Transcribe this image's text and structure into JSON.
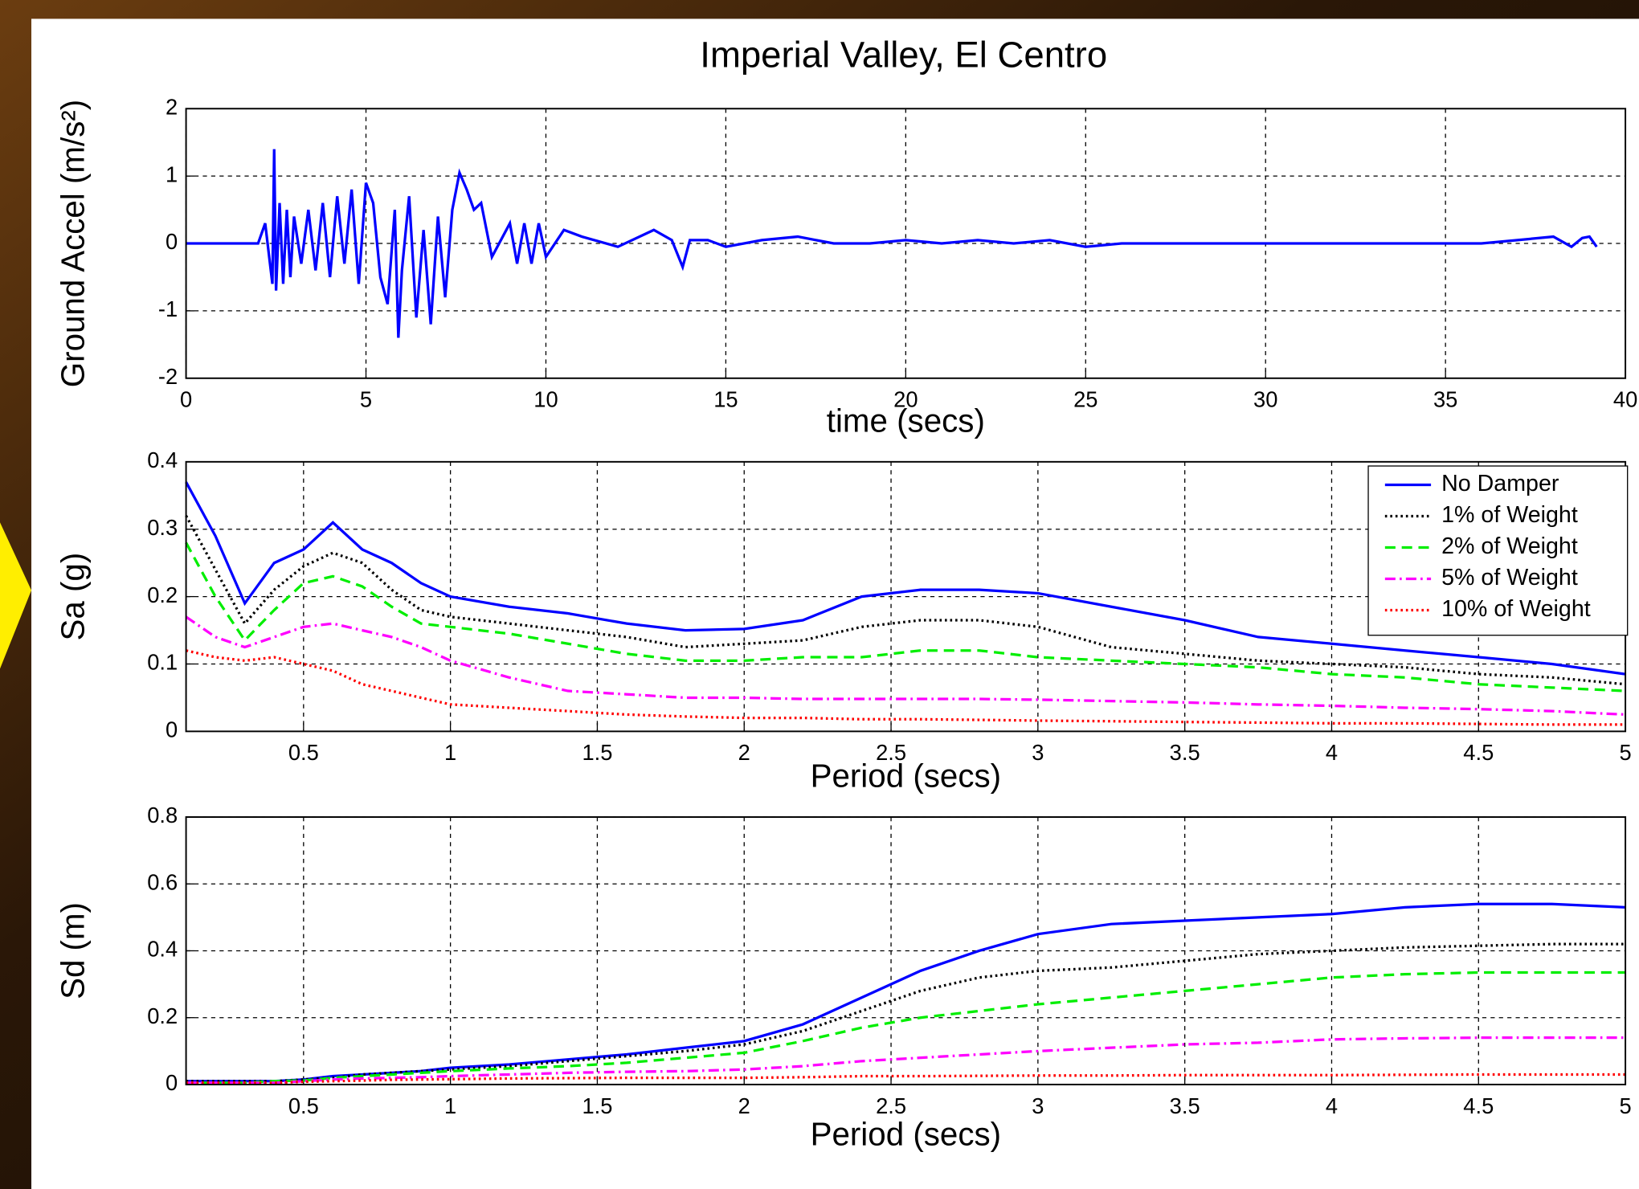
{
  "chart_data": [
    {
      "type": "line",
      "title": "Imperial Valley, El Centro",
      "xlabel": "time (secs)",
      "ylabel": "Ground Accel (m/s²)",
      "x": [
        0,
        1,
        2,
        2.2,
        2.4,
        2.45,
        2.5,
        2.6,
        2.7,
        2.8,
        2.9,
        3.0,
        3.2,
        3.4,
        3.6,
        3.8,
        4.0,
        4.2,
        4.4,
        4.6,
        4.8,
        5.0,
        5.2,
        5.4,
        5.6,
        5.8,
        5.9,
        6.0,
        6.2,
        6.4,
        6.6,
        6.8,
        7.0,
        7.2,
        7.4,
        7.6,
        7.8,
        8.0,
        8.2,
        8.5,
        9.0,
        9.2,
        9.4,
        9.6,
        9.8,
        10,
        10.5,
        11,
        12,
        13,
        13.5,
        13.8,
        14,
        14.5,
        15,
        16,
        17,
        18,
        19,
        20,
        21,
        22,
        23,
        24,
        25,
        26,
        28,
        30,
        32,
        34,
        36,
        37,
        38,
        38.5,
        38.8,
        39,
        39.2
      ],
      "series": [
        {
          "color": "#0000ff",
          "style": "solid",
          "values": [
            0,
            0,
            0,
            0.3,
            -0.6,
            1.4,
            -0.7,
            0.6,
            -0.6,
            0.5,
            -0.5,
            0.4,
            -0.3,
            0.5,
            -0.4,
            0.6,
            -0.5,
            0.7,
            -0.3,
            0.8,
            -0.6,
            0.9,
            0.6,
            -0.5,
            -0.9,
            0.5,
            -1.4,
            -0.4,
            0.7,
            -1.1,
            0.2,
            -1.2,
            0.4,
            -0.8,
            0.5,
            1.05,
            0.8,
            0.5,
            0.6,
            -0.2,
            0.3,
            -0.3,
            0.3,
            -0.3,
            0.3,
            -0.2,
            0.2,
            0.1,
            -0.05,
            0.2,
            0.05,
            -0.35,
            0.05,
            0.05,
            -0.05,
            0.05,
            0.1,
            0,
            0,
            0.05,
            0,
            0.05,
            0,
            0.05,
            -0.05,
            0,
            0,
            0,
            0,
            0,
            0,
            0.05,
            0.1,
            -0.05,
            0.08,
            0.1,
            -0.05
          ]
        }
      ],
      "xlim": [
        0,
        40
      ],
      "xticks": [
        0,
        5,
        10,
        15,
        20,
        25,
        30,
        35,
        40
      ],
      "ylim": [
        -2,
        2
      ],
      "yticks": [
        -2,
        -1,
        0,
        1,
        2
      ],
      "grid": true
    },
    {
      "type": "line",
      "xlabel": "Period (secs)",
      "ylabel": "Sa (g)",
      "legend": "upper right",
      "x": [
        0.1,
        0.2,
        0.3,
        0.4,
        0.5,
        0.6,
        0.7,
        0.8,
        0.9,
        1.0,
        1.2,
        1.4,
        1.6,
        1.8,
        2.0,
        2.2,
        2.4,
        2.6,
        2.8,
        3.0,
        3.25,
        3.5,
        3.75,
        4.0,
        4.25,
        4.5,
        4.75,
        5.0
      ],
      "series": [
        {
          "name": "No Damper",
          "color": "#0000ff",
          "style": "solid",
          "values": [
            0.37,
            0.29,
            0.19,
            0.25,
            0.27,
            0.31,
            0.27,
            0.25,
            0.22,
            0.2,
            0.185,
            0.175,
            0.16,
            0.15,
            0.152,
            0.165,
            0.2,
            0.21,
            0.21,
            0.205,
            0.185,
            0.165,
            0.14,
            0.13,
            0.12,
            0.11,
            0.1,
            0.085
          ]
        },
        {
          "name": "1% of Weight",
          "color": "#000000",
          "style": "dotted",
          "values": [
            0.32,
            0.24,
            0.16,
            0.21,
            0.245,
            0.265,
            0.25,
            0.21,
            0.18,
            0.17,
            0.16,
            0.15,
            0.14,
            0.125,
            0.13,
            0.135,
            0.155,
            0.165,
            0.165,
            0.155,
            0.125,
            0.115,
            0.105,
            0.1,
            0.095,
            0.085,
            0.08,
            0.07
          ]
        },
        {
          "name": "2% of Weight",
          "color": "#00ee00",
          "style": "dashed",
          "values": [
            0.28,
            0.2,
            0.135,
            0.18,
            0.22,
            0.23,
            0.215,
            0.185,
            0.16,
            0.155,
            0.145,
            0.13,
            0.115,
            0.105,
            0.105,
            0.11,
            0.11,
            0.12,
            0.12,
            0.11,
            0.105,
            0.1,
            0.095,
            0.085,
            0.08,
            0.07,
            0.065,
            0.06
          ]
        },
        {
          "name": "5% of Weight",
          "color": "#ff00ff",
          "style": "dashdot",
          "values": [
            0.17,
            0.14,
            0.125,
            0.14,
            0.155,
            0.16,
            0.15,
            0.14,
            0.125,
            0.105,
            0.08,
            0.06,
            0.055,
            0.05,
            0.05,
            0.048,
            0.048,
            0.048,
            0.048,
            0.047,
            0.045,
            0.043,
            0.04,
            0.038,
            0.035,
            0.033,
            0.03,
            0.025
          ]
        },
        {
          "name": "10% of Weight",
          "color": "#ff0000",
          "style": "dotted",
          "values": [
            0.12,
            0.11,
            0.105,
            0.11,
            0.1,
            0.09,
            0.07,
            0.06,
            0.05,
            0.04,
            0.035,
            0.03,
            0.025,
            0.022,
            0.02,
            0.02,
            0.018,
            0.018,
            0.017,
            0.016,
            0.015,
            0.014,
            0.013,
            0.012,
            0.012,
            0.011,
            0.01,
            0.01
          ]
        }
      ],
      "xlim": [
        0.1,
        5
      ],
      "xticks": [
        0.5,
        1,
        1.5,
        2,
        2.5,
        3,
        3.5,
        4,
        4.5,
        5
      ],
      "ylim": [
        0,
        0.4
      ],
      "yticks": [
        0,
        0.1,
        0.2,
        0.3,
        0.4
      ],
      "grid": true
    },
    {
      "type": "line",
      "xlabel": "Period (secs)",
      "ylabel": "Sd (m)",
      "x": [
        0.1,
        0.2,
        0.3,
        0.4,
        0.5,
        0.6,
        0.7,
        0.8,
        0.9,
        1.0,
        1.2,
        1.4,
        1.6,
        1.8,
        2.0,
        2.2,
        2.4,
        2.6,
        2.8,
        3.0,
        3.25,
        3.5,
        3.75,
        4.0,
        4.25,
        4.5,
        4.75,
        5.0
      ],
      "series": [
        {
          "color": "#0000ff",
          "style": "solid",
          "values": [
            0.01,
            0.01,
            0.01,
            0.01,
            0.015,
            0.025,
            0.03,
            0.035,
            0.04,
            0.05,
            0.06,
            0.075,
            0.09,
            0.11,
            0.13,
            0.18,
            0.26,
            0.34,
            0.4,
            0.45,
            0.48,
            0.49,
            0.5,
            0.51,
            0.53,
            0.54,
            0.54,
            0.53
          ]
        },
        {
          "color": "#000000",
          "style": "dotted",
          "values": [
            0.01,
            0.01,
            0.01,
            0.01,
            0.015,
            0.02,
            0.03,
            0.035,
            0.04,
            0.045,
            0.055,
            0.07,
            0.085,
            0.1,
            0.12,
            0.16,
            0.22,
            0.28,
            0.32,
            0.34,
            0.35,
            0.37,
            0.39,
            0.4,
            0.41,
            0.415,
            0.42,
            0.42
          ]
        },
        {
          "color": "#00ee00",
          "style": "dashed",
          "values": [
            0.005,
            0.005,
            0.005,
            0.01,
            0.012,
            0.02,
            0.025,
            0.03,
            0.035,
            0.04,
            0.048,
            0.055,
            0.065,
            0.08,
            0.095,
            0.13,
            0.17,
            0.2,
            0.22,
            0.24,
            0.26,
            0.28,
            0.3,
            0.32,
            0.33,
            0.335,
            0.335,
            0.335
          ]
        },
        {
          "color": "#ff00ff",
          "style": "dashdot",
          "values": [
            0.005,
            0.005,
            0.005,
            0.005,
            0.01,
            0.015,
            0.018,
            0.02,
            0.022,
            0.025,
            0.03,
            0.035,
            0.038,
            0.04,
            0.045,
            0.055,
            0.07,
            0.08,
            0.09,
            0.1,
            0.11,
            0.12,
            0.125,
            0.135,
            0.138,
            0.14,
            0.14,
            0.14
          ]
        },
        {
          "color": "#ff0000",
          "style": "dotted",
          "values": [
            0.005,
            0.005,
            0.005,
            0.005,
            0.008,
            0.01,
            0.012,
            0.014,
            0.015,
            0.016,
            0.018,
            0.019,
            0.02,
            0.02,
            0.02,
            0.022,
            0.025,
            0.025,
            0.026,
            0.027,
            0.027,
            0.028,
            0.028,
            0.028,
            0.029,
            0.03,
            0.03,
            0.03
          ]
        }
      ],
      "xlim": [
        0.1,
        5
      ],
      "xticks": [
        0.5,
        1,
        1.5,
        2,
        2.5,
        3,
        3.5,
        4,
        4.5,
        5
      ],
      "ylim": [
        0,
        0.8
      ],
      "yticks": [
        0,
        0.2,
        0.4,
        0.6,
        0.8
      ],
      "grid": true
    }
  ]
}
